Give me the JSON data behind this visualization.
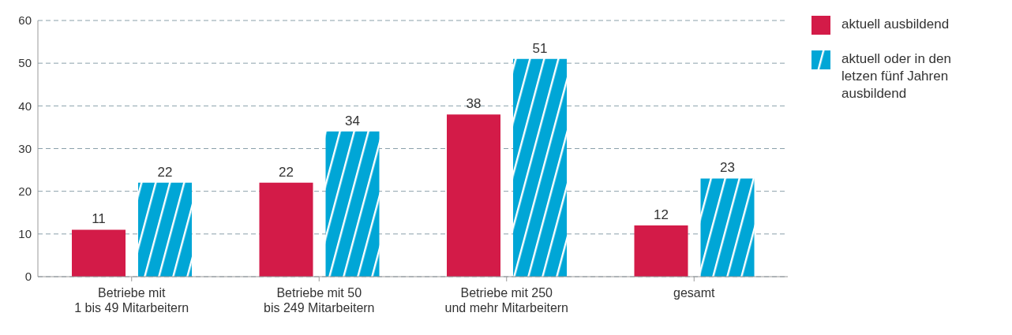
{
  "chart_data": {
    "type": "bar",
    "categories": [
      "Betriebe mit\n1 bis 49 Mitarbeitern",
      "Betriebe mit 50\nbis 249 Mitarbeitern",
      "Betriebe mit 250\nund mehr Mitarbeitern",
      "gesamt"
    ],
    "series": [
      {
        "name": "aktuell ausbildend",
        "color": "#d31b48",
        "values": [
          11,
          22,
          38,
          12
        ]
      },
      {
        "name": "aktuell oder in den letzen fünf Jahren ausbildend",
        "color": "#00a6d6",
        "values": [
          22,
          34,
          51,
          23
        ]
      }
    ],
    "ylim": [
      0,
      60
    ],
    "yticks": [
      0,
      10,
      20,
      30,
      40,
      50,
      60
    ],
    "grid": "y",
    "legend": "top right",
    "data_labels": true
  }
}
